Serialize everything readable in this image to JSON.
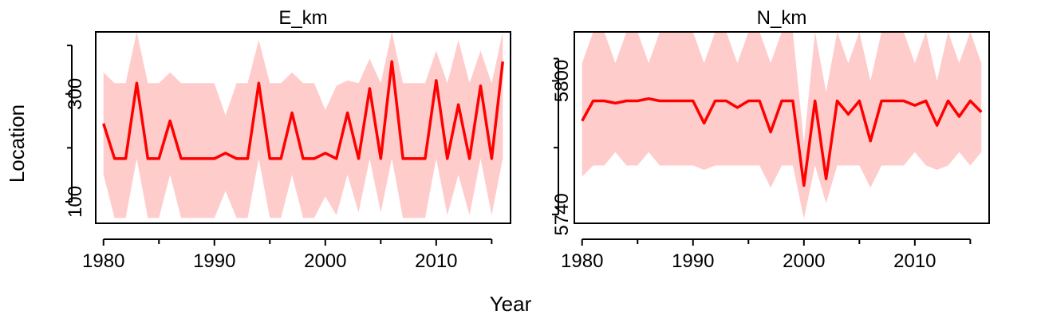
{
  "chart_data": [
    {
      "type": "line",
      "title": "E_km",
      "ylabel": "Location",
      "xlabel": "Year",
      "xlim": [
        1979.3,
        2016.7
      ],
      "ylim": [
        60,
        415
      ],
      "x_ticks": [
        1980,
        1990,
        2000,
        2010
      ],
      "x_minor_ticks": [
        1985,
        1995,
        2005,
        2015
      ],
      "y_ticks": [
        100,
        300
      ],
      "y_axis_extent": [
        100,
        390
      ],
      "band_color": "#ffcccc",
      "line_color": "#ff0000",
      "series": [
        {
          "x": [
            1980,
            1981,
            1982,
            1983,
            1984,
            1985,
            1986,
            1987,
            1988,
            1989,
            1990,
            1991,
            1992,
            1993,
            1994,
            1995,
            1996,
            1997,
            1998,
            1999,
            2000,
            2001,
            2002,
            2003,
            2004,
            2005,
            2006,
            2007,
            2008,
            2009,
            2010,
            2011,
            2012,
            2013,
            2014,
            2015,
            2016
          ],
          "y": [
            245,
            180,
            180,
            320,
            180,
            180,
            250,
            180,
            180,
            180,
            180,
            190,
            180,
            180,
            320,
            180,
            180,
            265,
            180,
            180,
            190,
            180,
            265,
            180,
            310,
            180,
            360,
            180,
            180,
            180,
            325,
            180,
            280,
            180,
            315,
            180,
            360
          ],
          "lower": [
            150,
            70,
            70,
            180,
            70,
            70,
            150,
            70,
            70,
            70,
            70,
            120,
            70,
            70,
            180,
            70,
            70,
            150,
            70,
            70,
            110,
            75,
            150,
            80,
            180,
            80,
            180,
            70,
            70,
            70,
            180,
            75,
            150,
            75,
            180,
            75,
            180
          ],
          "upper": [
            340,
            320,
            320,
            430,
            320,
            320,
            340,
            320,
            320,
            320,
            320,
            260,
            320,
            320,
            400,
            320,
            320,
            340,
            320,
            320,
            270,
            315,
            325,
            320,
            365,
            320,
            430,
            320,
            320,
            320,
            380,
            320,
            400,
            320,
            380,
            320,
            440
          ]
        }
      ]
    },
    {
      "type": "line",
      "title": "N_km",
      "ylabel": "",
      "xlabel": "",
      "xlim": [
        1979.3,
        2016.7
      ],
      "ylim": [
        5736,
        5822
      ],
      "x_ticks": [
        1980,
        1990,
        2000,
        2010
      ],
      "x_minor_ticks": [
        1985,
        1995,
        2005,
        2015
      ],
      "y_ticks": [
        5740,
        5800
      ],
      "y_axis_extent": [
        5740,
        5810
      ],
      "band_color": "#ffcccc",
      "line_color": "#ff0000",
      "series": [
        {
          "x": [
            1980,
            1981,
            1982,
            1983,
            1984,
            1985,
            1986,
            1987,
            1988,
            1989,
            1990,
            1991,
            1992,
            1993,
            1994,
            1995,
            1996,
            1997,
            1998,
            1999,
            2000,
            2001,
            2002,
            2003,
            2004,
            2005,
            2006,
            2007,
            2008,
            2009,
            2010,
            2011,
            2012,
            2013,
            2014,
            2015,
            2016
          ],
          "y": [
            5782,
            5791,
            5791,
            5790,
            5791,
            5791,
            5792,
            5791,
            5791,
            5791,
            5791,
            5781,
            5791,
            5791,
            5788,
            5791,
            5791,
            5777,
            5791,
            5791,
            5753,
            5791,
            5756,
            5791,
            5785,
            5791,
            5773,
            5791,
            5791,
            5791,
            5789,
            5791,
            5780,
            5791,
            5784,
            5791,
            5786
          ],
          "lower": [
            5757,
            5762,
            5762,
            5768,
            5762,
            5762,
            5768,
            5762,
            5762,
            5762,
            5762,
            5760,
            5762,
            5762,
            5762,
            5762,
            5762,
            5752,
            5762,
            5762,
            5738,
            5762,
            5745,
            5762,
            5762,
            5762,
            5752,
            5762,
            5762,
            5762,
            5768,
            5762,
            5760,
            5762,
            5768,
            5762,
            5768
          ],
          "upper": [
            5808,
            5825,
            5825,
            5808,
            5825,
            5825,
            5808,
            5825,
            5825,
            5825,
            5825,
            5808,
            5825,
            5825,
            5808,
            5825,
            5825,
            5808,
            5825,
            5825,
            5772,
            5825,
            5795,
            5825,
            5808,
            5825,
            5800,
            5825,
            5825,
            5825,
            5808,
            5825,
            5800,
            5825,
            5808,
            5825,
            5808
          ]
        }
      ]
    }
  ]
}
